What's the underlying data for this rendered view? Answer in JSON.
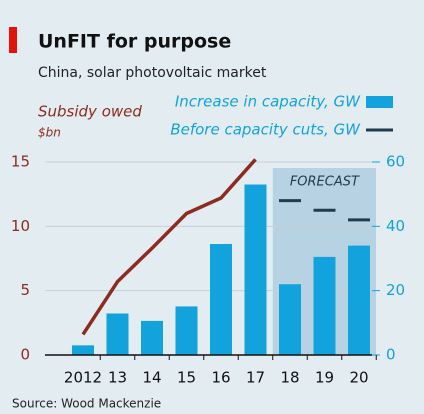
{
  "chart_data": {
    "type": "bar-line",
    "title": "UnFIT for purpose",
    "subtitle": "China, solar photovoltaic market",
    "source": "Source: Wood Mackenzie",
    "categories": [
      "2012",
      "13",
      "14",
      "15",
      "16",
      "17",
      "18",
      "19",
      "20"
    ],
    "series": [
      {
        "name": "Subsidy owed",
        "unit": "$bn",
        "type": "line",
        "color": "#8c2b1f",
        "axis": "y",
        "values": [
          1.6,
          5.7,
          8.3,
          11,
          12.2,
          15.2,
          null,
          null,
          null
        ]
      },
      {
        "name": "Increase in capacity, GW",
        "type": "bar",
        "color": "#13a3dc",
        "axis": "y2",
        "values": [
          3,
          12.9,
          10.6,
          15.1,
          34.5,
          53,
          22,
          30.5,
          34
        ]
      },
      {
        "name": "Before capacity cuts, GW",
        "type": "marker",
        "color": "#1f3d4f",
        "axis": "y2",
        "values": [
          null,
          null,
          null,
          null,
          null,
          null,
          48,
          45,
          42
        ]
      }
    ],
    "forecast": {
      "label": "FORECAST",
      "from": "18"
    },
    "ylim": [
      0,
      15
    ],
    "yticks": [
      0,
      5,
      10,
      15
    ],
    "y2lim": [
      0,
      60
    ],
    "y2ticks": [
      0,
      20,
      40,
      60
    ],
    "grid": true
  }
}
